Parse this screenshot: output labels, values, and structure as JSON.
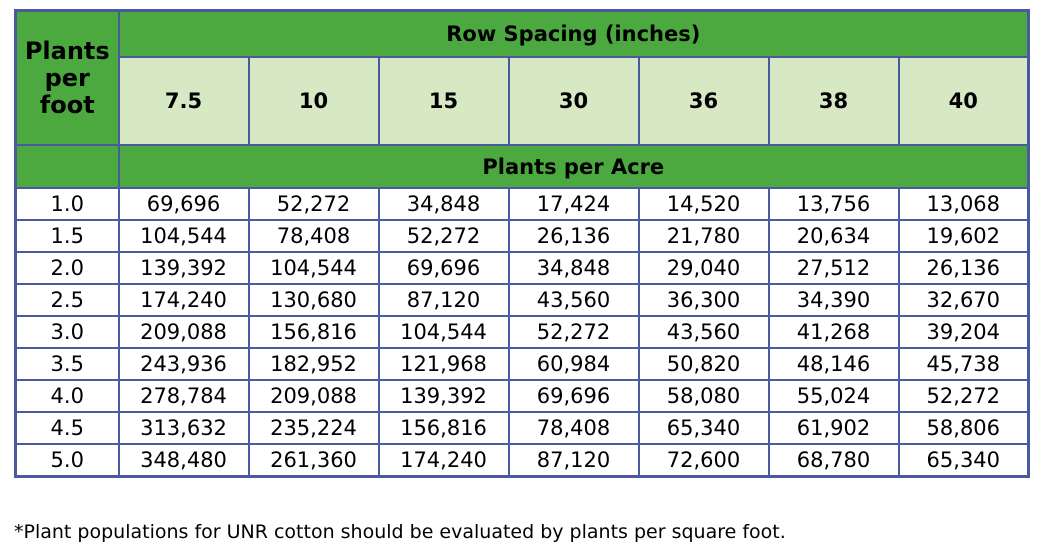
{
  "table": {
    "corner_label": [
      "Plants",
      "per",
      "foot"
    ],
    "row_spacing_header": "Row Spacing (inches)",
    "columns": [
      "7.5",
      "10",
      "15",
      "30",
      "36",
      "38",
      "40"
    ],
    "subheader": "Plants per Acre",
    "rows": [
      {
        "label": "1.0",
        "values": [
          "69,696",
          "52,272",
          "34,848",
          "17,424",
          "14,520",
          "13,756",
          "13,068"
        ]
      },
      {
        "label": "1.5",
        "values": [
          "104,544",
          "78,408",
          "52,272",
          "26,136",
          "21,780",
          "20,634",
          "19,602"
        ]
      },
      {
        "label": "2.0",
        "values": [
          "139,392",
          "104,544",
          "69,696",
          "34,848",
          "29,040",
          "27,512",
          "26,136"
        ]
      },
      {
        "label": "2.5",
        "values": [
          "174,240",
          "130,680",
          "87,120",
          "43,560",
          "36,300",
          "34,390",
          "32,670"
        ]
      },
      {
        "label": "3.0",
        "values": [
          "209,088",
          "156,816",
          "104,544",
          "52,272",
          "43,560",
          "41,268",
          "39,204"
        ]
      },
      {
        "label": "3.5",
        "values": [
          "243,936",
          "182,952",
          "121,968",
          "60,984",
          "50,820",
          "48,146",
          "45,738"
        ]
      },
      {
        "label": "4.0",
        "values": [
          "278,784",
          "209,088",
          "139,392",
          "69,696",
          "58,080",
          "55,024",
          "52,272"
        ]
      },
      {
        "label": "4.5",
        "values": [
          "313,632",
          "235,224",
          "156,816",
          "78,408",
          "65,340",
          "61,902",
          "58,806"
        ]
      },
      {
        "label": "5.0",
        "values": [
          "348,480",
          "261,360",
          "174,240",
          "87,120",
          "72,600",
          "68,780",
          "65,340"
        ]
      }
    ]
  },
  "footnote": "*Plant populations for UNR cotton should be evaluated by plants per square foot.",
  "colors": {
    "header_green": "#4ca940",
    "column_header_light_green": "#d7e8c5",
    "border_blue": "#4a5aa0"
  }
}
